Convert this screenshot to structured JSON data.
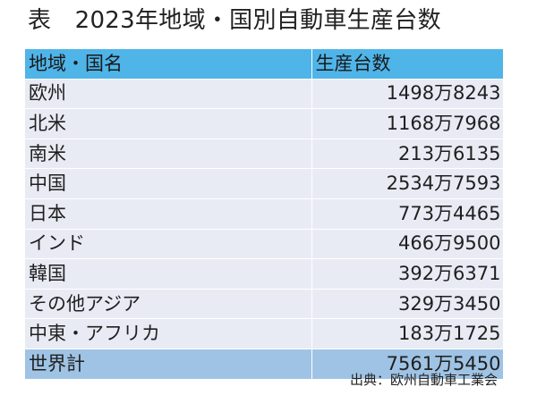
{
  "title": "表　2023年地域・国別自動車生産台数",
  "table": {
    "headers": [
      "地域・国名",
      "生産台数"
    ],
    "rows": [
      {
        "region": "欧州",
        "units": "1498万8243"
      },
      {
        "region": "北米",
        "units": "1168万7968"
      },
      {
        "region": "南米",
        "units": "213万6135"
      },
      {
        "region": "中国",
        "units": "2534万7593"
      },
      {
        "region": "日本",
        "units": "773万4465"
      },
      {
        "region": "インド",
        "units": "466万9500"
      },
      {
        "region": "韓国",
        "units": "392万6371"
      },
      {
        "region": "その他アジア",
        "units": "329万3450"
      },
      {
        "region": "中東・アフリカ",
        "units": "183万1725"
      }
    ],
    "total": {
      "region": "世界計",
      "units": "7561万5450"
    }
  },
  "source": "出典：欧州自動車工業会",
  "colors": {
    "header_bg": "#4fb4e8",
    "row_bg": "#e9ebf4",
    "total_bg": "#9fc3e4"
  }
}
